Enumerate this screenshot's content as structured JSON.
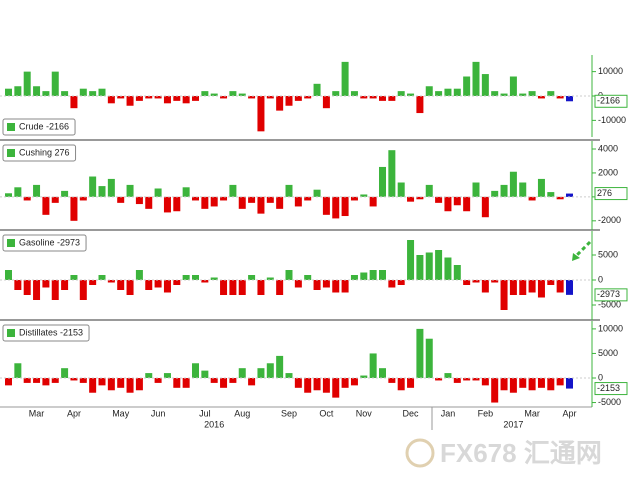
{
  "chart_data": [
    {
      "type": "bar",
      "series": [
        {
          "name": "Crude -2166",
          "values": [
            3000,
            4000,
            10000,
            4000,
            2000,
            10000,
            2000,
            -5000,
            3000,
            2000,
            3000,
            -3000,
            -1000,
            -4000,
            -2000,
            -1000,
            -1000,
            -3000,
            -2000,
            -3000,
            -2000,
            2000,
            1000,
            -1000,
            2000,
            1000,
            -1000,
            -14500,
            -1000,
            -6000,
            -4000,
            -2000,
            -1000,
            5000,
            -5000,
            2000,
            14000,
            2000,
            -1000,
            -1000,
            -2000,
            -2000,
            2000,
            1000,
            -7000,
            4000,
            2000,
            3000,
            3000,
            8000,
            14000,
            9000,
            2000,
            1000,
            8000,
            1000,
            2000,
            -1000,
            2000,
            -1000,
            -2166
          ]
        }
      ],
      "ylim": [
        -16000,
        16000
      ],
      "yticks": [
        -10000,
        0,
        10000
      ],
      "up_color": "#3cb43c",
      "down_color": "#e00000",
      "latest_color": "#1414c8"
    },
    {
      "type": "bar",
      "series": [
        {
          "name": "Cushing 276",
          "values": [
            300,
            800,
            -300,
            1000,
            -1500,
            -500,
            500,
            -2000,
            -300,
            1700,
            900,
            1500,
            -500,
            1000,
            -600,
            -1000,
            700,
            -1300,
            -1200,
            800,
            -300,
            -1000,
            -800,
            -300,
            1000,
            -1000,
            -500,
            -1400,
            -500,
            -1000,
            1000,
            -800,
            -300,
            600,
            -1500,
            -1800,
            -1600,
            -300,
            200,
            -800,
            2500,
            3900,
            1200,
            -400,
            -200,
            1000,
            -500,
            -1200,
            -700,
            -1200,
            1200,
            -1700,
            500,
            1000,
            2100,
            1200,
            -300,
            1500,
            400,
            -200,
            276
          ]
        }
      ],
      "ylim": [
        -2600,
        4500
      ],
      "yticks": [
        -2000,
        0,
        2000,
        4000
      ],
      "up_color": "#3cb43c",
      "down_color": "#e00000",
      "latest_color": "#1414c8"
    },
    {
      "type": "bar",
      "series": [
        {
          "name": "Gasoline -2973",
          "values": [
            2000,
            -2000,
            -3000,
            -4000,
            -1500,
            -4000,
            -2000,
            1000,
            -4000,
            -1000,
            1000,
            -500,
            -2000,
            -3000,
            2000,
            -2000,
            -1500,
            -2500,
            -1000,
            1000,
            1000,
            -500,
            500,
            -3000,
            -3000,
            -3000,
            1000,
            -3000,
            500,
            -3000,
            2000,
            -1500,
            1000,
            -2000,
            -1500,
            -2500,
            -2500,
            1000,
            1500,
            2000,
            2000,
            -1500,
            -1000,
            8000,
            5000,
            5500,
            6000,
            4500,
            3000,
            -1000,
            -500,
            -2500,
            -500,
            -6000,
            -3000,
            -3000,
            -2500,
            -3500,
            -1000,
            -2500,
            -2973
          ]
        }
      ],
      "ylim": [
        -7600,
        9400
      ],
      "yticks": [
        -5000,
        0,
        5000
      ],
      "up_color": "#3cb43c",
      "down_color": "#e00000",
      "latest_color": "#1414c8"
    },
    {
      "type": "bar",
      "series": [
        {
          "name": "Distillates -2153",
          "values": [
            -1500,
            3000,
            -1000,
            -1000,
            -1500,
            -1000,
            2000,
            -500,
            -1000,
            -3000,
            -1500,
            -2500,
            -2000,
            -3000,
            -2500,
            1000,
            -1000,
            1000,
            -2000,
            -2000,
            3000,
            1500,
            -1000,
            -2000,
            -1000,
            2000,
            -1500,
            2000,
            3000,
            4500,
            1000,
            -2000,
            -3000,
            -2500,
            -3000,
            -4000,
            -2000,
            -1500,
            500,
            5000,
            2000,
            -1000,
            -2500,
            -2000,
            10000,
            8000,
            -500,
            1000,
            -1000,
            -500,
            -500,
            -1500,
            -5000,
            -2500,
            -3000,
            -2000,
            -2500,
            -2000,
            -2500,
            -1500,
            -2153
          ]
        }
      ],
      "ylim": [
        -5500,
        11200
      ],
      "yticks": [
        -5000,
        0,
        5000,
        10000
      ],
      "up_color": "#3cb43c",
      "down_color": "#e00000",
      "latest_color": "#1414c8",
      "categories": [
        null,
        null,
        null,
        "Mar",
        null,
        null,
        null,
        "Apr",
        null,
        null,
        null,
        null,
        "May",
        null,
        null,
        null,
        "Jun",
        null,
        null,
        null,
        null,
        "Jul",
        null,
        null,
        null,
        "Aug",
        null,
        null,
        null,
        null,
        "Sep",
        null,
        null,
        null,
        "Oct",
        null,
        null,
        null,
        "Nov",
        null,
        null,
        null,
        null,
        "Dec",
        null,
        null,
        null,
        "Jan",
        null,
        null,
        null,
        "Feb",
        null,
        null,
        null,
        null,
        "Mar",
        null,
        null,
        null,
        "Apr"
      ],
      "year_categories": [
        null,
        null,
        null,
        null,
        null,
        null,
        null,
        null,
        null,
        null,
        null,
        null,
        null,
        null,
        null,
        null,
        null,
        null,
        null,
        null,
        null,
        null,
        "2016",
        null,
        null,
        null,
        null,
        null,
        null,
        null,
        null,
        null,
        null,
        null,
        null,
        null,
        null,
        null,
        null,
        null,
        null,
        null,
        null,
        null,
        null,
        null,
        null,
        null,
        null,
        null,
        null,
        null,
        null,
        null,
        "2017",
        null,
        null,
        null,
        null,
        null,
        null
      ]
    }
  ],
  "watermark": "FX678 汇通网"
}
